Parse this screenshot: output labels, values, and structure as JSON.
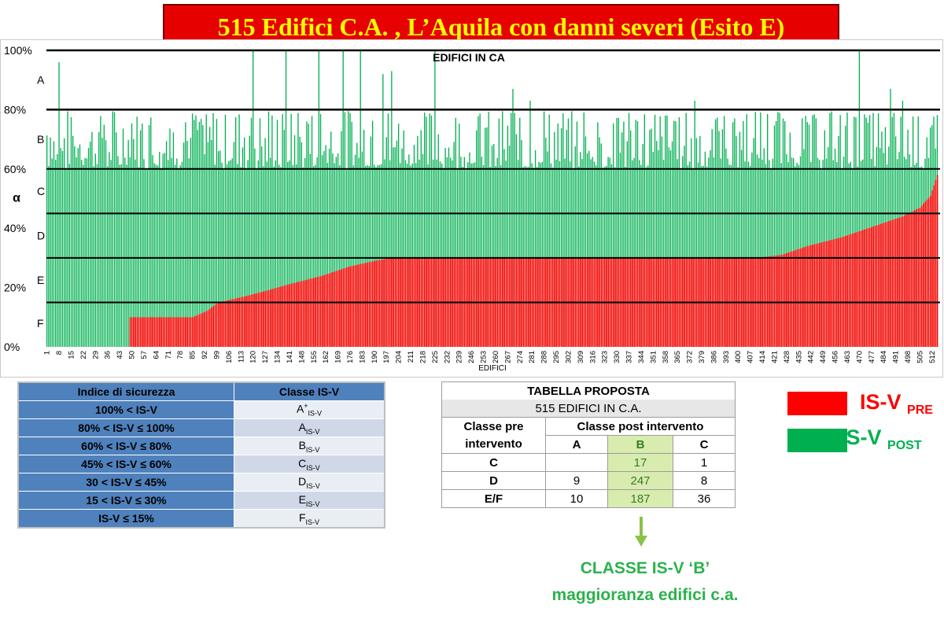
{
  "title": "515 Edifici C.A. , L’Aquila con danni severi (Esito E)",
  "chart_data": {
    "type": "bar",
    "title": "EDIFICI IN CA",
    "xlabel": "EDIFICI",
    "ylabel": "α",
    "n_buildings": 515,
    "ylim": [
      0,
      100
    ],
    "y_ticks": [
      "0%",
      "20%",
      "40%",
      "60%",
      "80%",
      "100%"
    ],
    "x_tick_start": 1,
    "x_tick_step": 7,
    "x_tick_last": 512,
    "bands": [
      "A",
      "B",
      "C",
      "D",
      "E",
      "F"
    ],
    "thresholds": [
      15,
      30,
      45,
      60,
      80,
      100
    ],
    "series": [
      {
        "name": "IS-V PRE",
        "color": "#ff0000",
        "profile": [
          [
            1,
            0
          ],
          [
            48,
            0
          ],
          [
            49,
            10
          ],
          [
            85,
            10
          ],
          [
            93,
            12
          ],
          [
            100,
            15
          ],
          [
            115,
            17
          ],
          [
            128,
            19
          ],
          [
            140,
            21
          ],
          [
            160,
            24
          ],
          [
            175,
            27
          ],
          [
            190,
            29
          ],
          [
            200,
            30
          ],
          [
            410,
            30
          ],
          [
            425,
            31
          ],
          [
            440,
            34
          ],
          [
            460,
            37
          ],
          [
            480,
            41
          ],
          [
            495,
            44
          ],
          [
            505,
            47
          ],
          [
            511,
            51
          ],
          [
            515,
            58
          ]
        ]
      },
      {
        "name": "IS-V POST",
        "color": "#00b050",
        "base": 60,
        "peaks": [
          [
            8,
            96
          ],
          [
            120,
            100
          ],
          [
            139,
            100
          ],
          [
            158,
            100
          ],
          [
            172,
            100
          ],
          [
            182,
            100
          ],
          [
            195,
            92
          ],
          [
            200,
            93
          ],
          [
            225,
            100
          ],
          [
            270,
            87
          ],
          [
            280,
            83
          ],
          [
            375,
            83
          ],
          [
            470,
            100
          ],
          [
            488,
            87
          ],
          [
            495,
            83
          ]
        ]
      }
    ]
  },
  "isv_table": {
    "headers": [
      "Indice di sicurezza",
      "Classe IS-V"
    ],
    "sub": "IS-V",
    "rows": [
      {
        "index": "100% < IS-V",
        "cls": "A",
        "sup": "+"
      },
      {
        "index": "80% < IS-V ≤  100%",
        "cls": "A",
        "sup": ""
      },
      {
        "index": "60% < IS-V ≤  80%",
        "cls": "B",
        "sup": ""
      },
      {
        "index": "45% < IS-V ≤  60%",
        "cls": "C",
        "sup": ""
      },
      {
        "index": "30 < IS-V ≤  45%",
        "cls": "D",
        "sup": ""
      },
      {
        "index": "15 < IS-V ≤  30%",
        "cls": "E",
        "sup": ""
      },
      {
        "index": "IS-V ≤  15%",
        "cls": "F",
        "sup": ""
      }
    ]
  },
  "proposal_table": {
    "title": "TABELLA PROPOSTA",
    "subtitle": "515 EDIFICI IN C.A.",
    "row_header_1": "Classe pre",
    "row_header_2": "intervento",
    "post_header": "Classe post intervento",
    "columns": [
      "A",
      "B",
      "C"
    ],
    "rows": [
      {
        "label": "C",
        "values": [
          "",
          "17",
          "1"
        ]
      },
      {
        "label": "D",
        "values": [
          "9",
          "247",
          "8"
        ]
      },
      {
        "label": "E/F",
        "values": [
          "10",
          "187",
          "36"
        ]
      }
    ]
  },
  "conclusion": {
    "line1": "CLASSE IS-V ‘B’",
    "line2": "maggioranza edifici c.a."
  },
  "legend": {
    "pre": {
      "label": "IS-V",
      "sub": "PRE",
      "color": "#ff0000"
    },
    "post": {
      "label": "IS-V",
      "sub": "POST",
      "color": "#00b050"
    }
  },
  "colors": {
    "banner": "#e60000",
    "banner_text": "#ffff00",
    "highlight": "#d8ecb0",
    "conclusion": "#2bb24c"
  }
}
